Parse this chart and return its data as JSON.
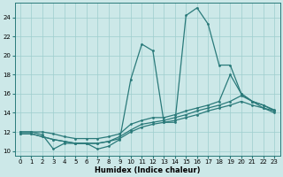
{
  "xlabel": "Humidex (Indice chaleur)",
  "bg_color": "#cce8e8",
  "line_color": "#2a7a7a",
  "grid_color": "#9ecece",
  "xlim": [
    -0.5,
    23.5
  ],
  "ylim": [
    9.5,
    25.5
  ],
  "yticks": [
    10,
    12,
    14,
    16,
    18,
    20,
    22,
    24
  ],
  "xticks": [
    0,
    1,
    2,
    3,
    4,
    5,
    6,
    7,
    8,
    9,
    10,
    11,
    12,
    13,
    14,
    15,
    16,
    17,
    18,
    19,
    20,
    21,
    22,
    23
  ],
  "s1_x": [
    0,
    1,
    2,
    3,
    4,
    5,
    6,
    7,
    8,
    9,
    10,
    11,
    12,
    13,
    14,
    15,
    16,
    17,
    18,
    19,
    20,
    21,
    22,
    23
  ],
  "s1_y": [
    12.0,
    12.0,
    11.7,
    10.2,
    10.8,
    10.8,
    10.8,
    10.2,
    10.5,
    11.2,
    17.5,
    21.2,
    20.5,
    13.0,
    13.0,
    24.2,
    25.0,
    23.3,
    19.0,
    19.0,
    16.0,
    15.2,
    14.5,
    14.2
  ],
  "s2_x": [
    0,
    1,
    2,
    3,
    4,
    5,
    6,
    7,
    8,
    9,
    10,
    11,
    12,
    13,
    14,
    15,
    16,
    17,
    18,
    19,
    20,
    21,
    22,
    23
  ],
  "s2_y": [
    12.0,
    12.0,
    12.0,
    11.8,
    11.5,
    11.3,
    11.3,
    11.3,
    11.5,
    11.8,
    12.8,
    13.2,
    13.5,
    13.5,
    13.8,
    14.2,
    14.5,
    14.8,
    15.2,
    18.0,
    16.0,
    15.2,
    14.8,
    14.3
  ],
  "s3_x": [
    0,
    1,
    2,
    3,
    4,
    5,
    6,
    7,
    8,
    9,
    10,
    11,
    12,
    13,
    14,
    15,
    16,
    17,
    18,
    19,
    20,
    21,
    22,
    23
  ],
  "s3_y": [
    11.8,
    11.8,
    11.5,
    11.2,
    11.0,
    10.8,
    10.8,
    10.8,
    11.0,
    11.5,
    12.2,
    12.8,
    13.0,
    13.2,
    13.5,
    13.8,
    14.2,
    14.5,
    14.8,
    15.2,
    15.8,
    15.2,
    14.8,
    14.2
  ],
  "s4_x": [
    0,
    1,
    2,
    3,
    4,
    5,
    6,
    7,
    8,
    9,
    10,
    11,
    12,
    13,
    14,
    15,
    16,
    17,
    18,
    19,
    20,
    21,
    22,
    23
  ],
  "s4_y": [
    11.8,
    11.8,
    11.5,
    11.2,
    11.0,
    10.8,
    10.8,
    10.8,
    11.0,
    11.3,
    12.0,
    12.5,
    12.8,
    13.0,
    13.2,
    13.5,
    13.8,
    14.2,
    14.5,
    14.8,
    15.2,
    14.8,
    14.5,
    14.0
  ]
}
